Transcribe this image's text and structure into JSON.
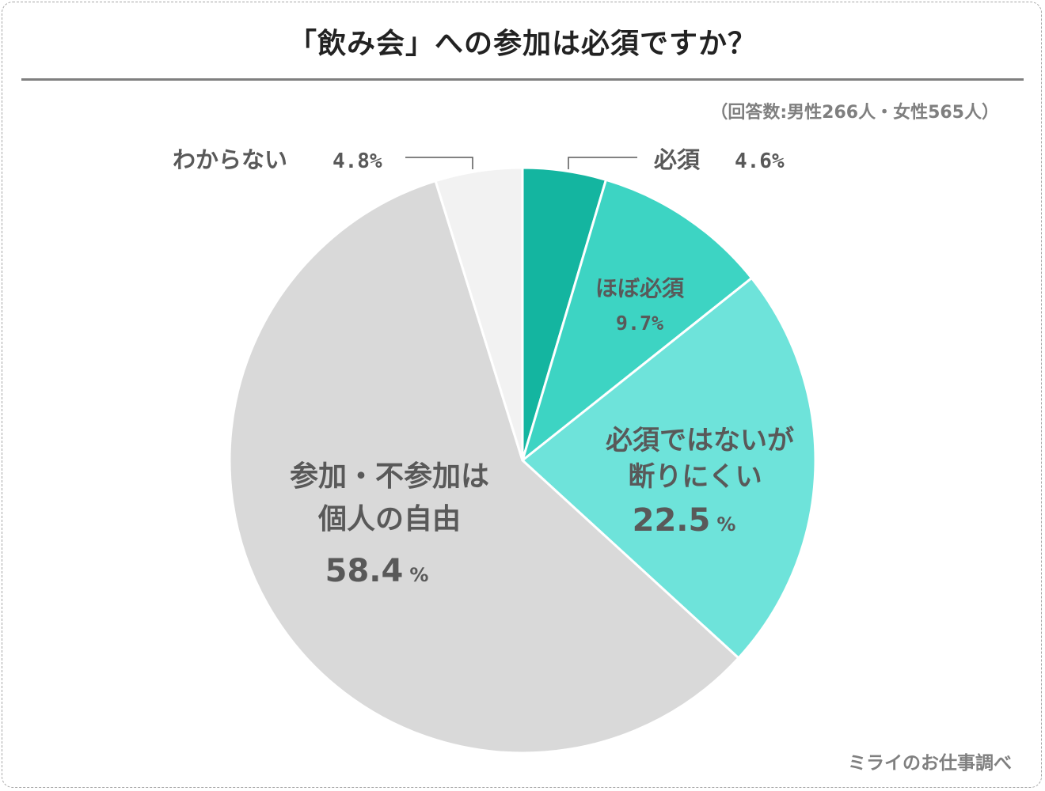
{
  "title": "「飲み会」への参加は必須ですか？",
  "note": "（回答数:男性266人・女性565人）",
  "credit": "ミライのお仕事調べ",
  "chart_data": {
    "type": "pie",
    "unit": "%",
    "start": "top, clockwise",
    "series": [
      {
        "name": "必須",
        "value": 4.6,
        "value_label": "4.6%",
        "label_lines": [
          "必須"
        ],
        "color": "#14b5a0",
        "callout": true
      },
      {
        "name": "ほぼ必須",
        "value": 9.7,
        "value_label": "9.7%",
        "label_lines": [
          "ほぼ必須"
        ],
        "color": "#3dd4c3",
        "callout": false
      },
      {
        "name": "必須ではないが断りにくい",
        "value": 22.5,
        "value_label": "22.5",
        "label_lines": [
          "必須ではないが",
          "断りにくい"
        ],
        "color": "#6ee3da",
        "callout": false
      },
      {
        "name": "参加・不参加は個人の自由",
        "value": 58.4,
        "value_label": "58.4",
        "label_lines": [
          "参加・不参加は",
          "個人の自由"
        ],
        "color": "#d9d9d9",
        "callout": false
      },
      {
        "name": "わからない",
        "value": 4.8,
        "value_label": "4.8%",
        "label_lines": [
          "わからない"
        ],
        "color": "#f2f2f2",
        "callout": true
      }
    ]
  }
}
